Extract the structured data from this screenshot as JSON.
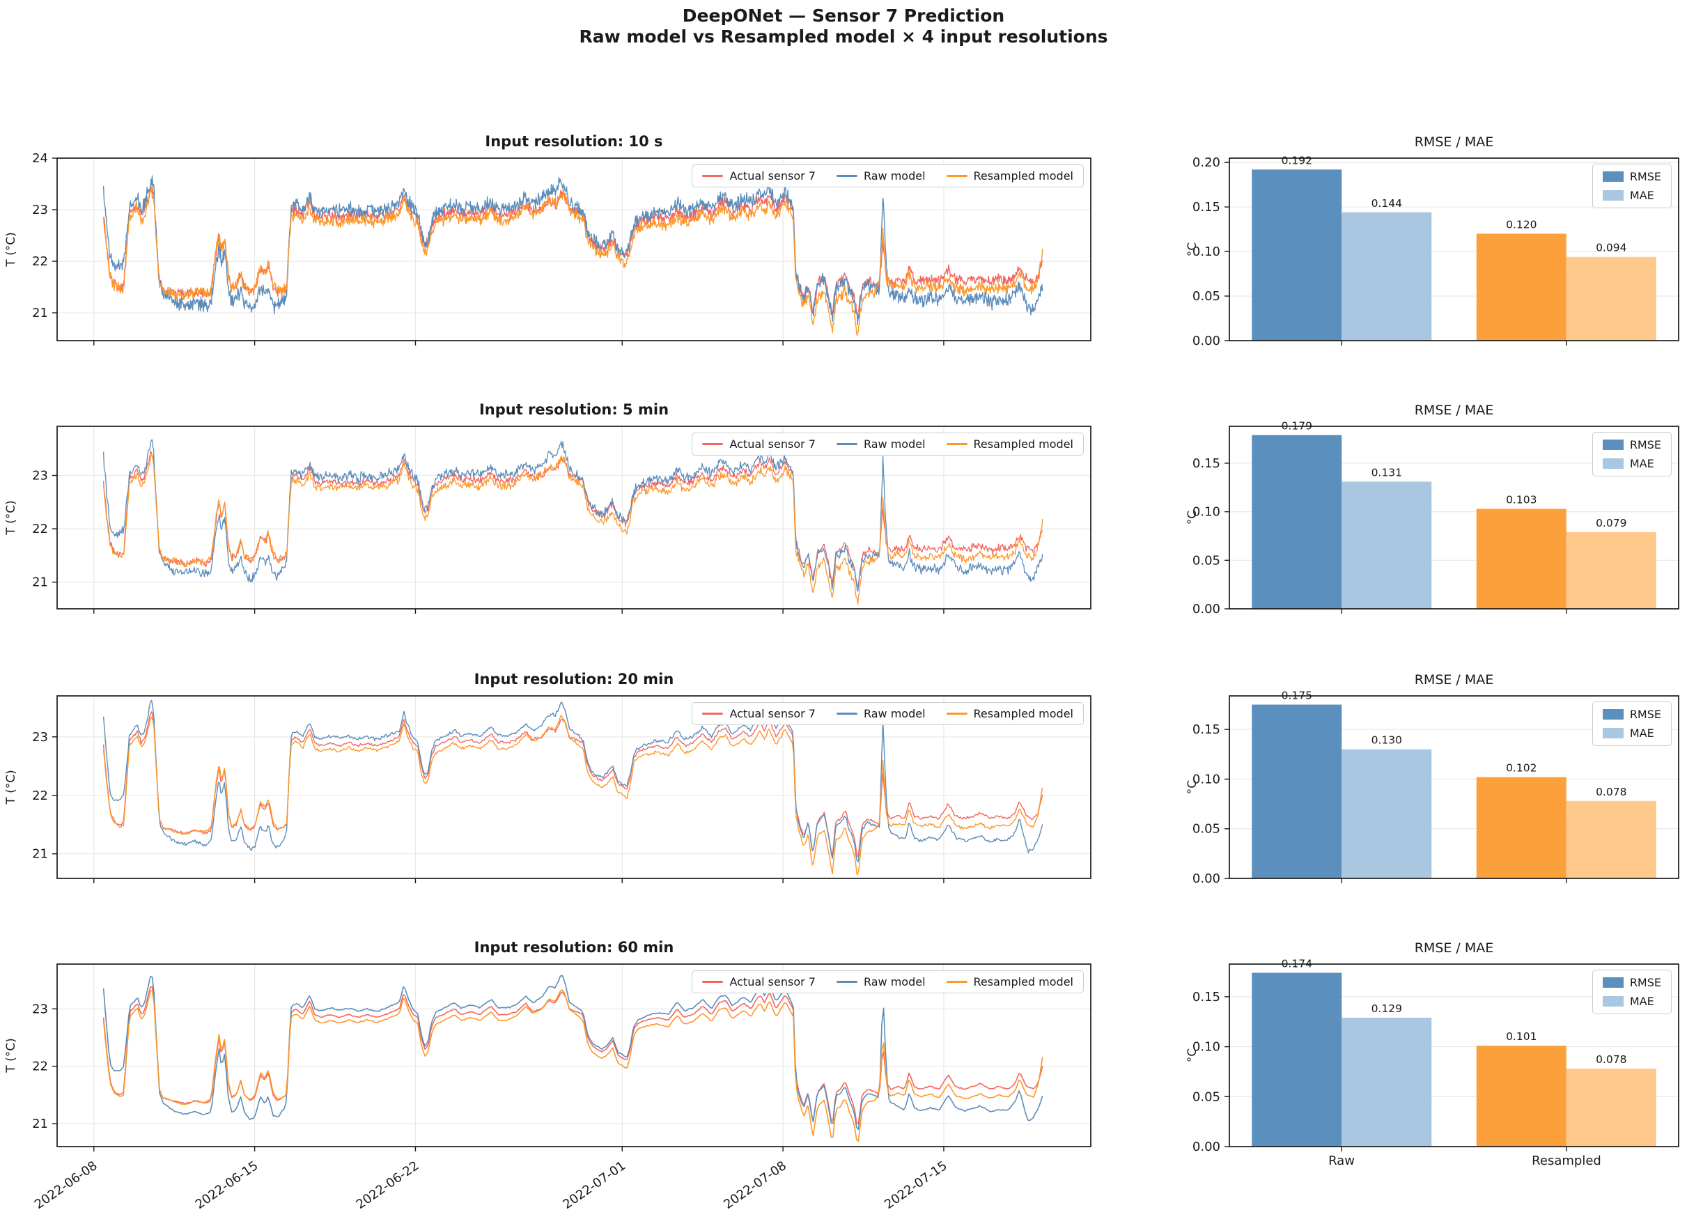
{
  "figure": {
    "title_line1": "DeepONet — Sensor 7 Prediction",
    "title_line2": "Raw model vs Resampled model × 4 input resolutions"
  },
  "colors": {
    "actual": "#f4655f",
    "raw": "#5b8cba",
    "resampled": "#fd9727",
    "rmse_bar": "#5a8fbe",
    "mae_bar": "#aac7e2",
    "rmse_bar_resampled": "#fca03c",
    "mae_bar_resampled": "#ffc98c",
    "grid": "#e7e7e7",
    "spine": "#1a1a1a"
  },
  "chart_data": {
    "timeseries": {
      "type": "line",
      "ylabel": "T (°C)",
      "series_legend": [
        "Actual sensor 7",
        "Raw model",
        "Resampled model"
      ],
      "x_unit": "days since 2022-06-08",
      "xlim_days": [
        -1.6,
        43.4
      ],
      "xticks_days": [
        0,
        7,
        14,
        23,
        30,
        37
      ],
      "xtick_labels": [
        "2022-06-08",
        "2022-06-15",
        "2022-06-22",
        "2022-07-01",
        "2022-07-08",
        "2022-07-15"
      ],
      "rows": [
        {
          "title": "Input resolution: 10 s",
          "yticks": [
            21,
            22,
            23,
            24
          ],
          "ylim": [
            20.46,
            24.0
          ],
          "noise": 0.13,
          "samples": 1600,
          "linewidth": 1.4
        },
        {
          "title": "Input resolution: 5 min",
          "yticks": [
            21,
            22,
            23
          ],
          "ylim": [
            20.5,
            23.92
          ],
          "noise": 0.085,
          "samples": 1200,
          "linewidth": 1.3
        },
        {
          "title": "Input resolution: 20 min",
          "yticks": [
            21,
            22,
            23
          ],
          "ylim": [
            20.58,
            23.7
          ],
          "noise": 0.03,
          "samples": 800,
          "linewidth": 1.4
        },
        {
          "title": "Input resolution: 60 min",
          "yticks": [
            21,
            22,
            23
          ],
          "ylim": [
            20.6,
            23.78
          ],
          "noise": 0.012,
          "samples": 520,
          "linewidth": 1.6
        }
      ],
      "actual_keypoints": [
        [
          0.42,
          22.85
        ],
        [
          0.55,
          22.3
        ],
        [
          0.7,
          21.75
        ],
        [
          0.85,
          21.58
        ],
        [
          1.0,
          21.52
        ],
        [
          1.15,
          21.5
        ],
        [
          1.3,
          21.55
        ],
        [
          1.45,
          22.4
        ],
        [
          1.55,
          22.95
        ],
        [
          1.7,
          23.0
        ],
        [
          1.9,
          23.1
        ],
        [
          2.05,
          22.9
        ],
        [
          2.2,
          22.95
        ],
        [
          2.35,
          23.2
        ],
        [
          2.5,
          23.45
        ],
        [
          2.6,
          23.3
        ],
        [
          2.7,
          22.6
        ],
        [
          2.85,
          21.6
        ],
        [
          3.0,
          21.45
        ],
        [
          3.3,
          21.42
        ],
        [
          3.6,
          21.38
        ],
        [
          4.0,
          21.35
        ],
        [
          4.4,
          21.4
        ],
        [
          4.8,
          21.35
        ],
        [
          5.1,
          21.4
        ],
        [
          5.3,
          22.1
        ],
        [
          5.45,
          22.5
        ],
        [
          5.55,
          22.2
        ],
        [
          5.7,
          22.45
        ],
        [
          5.85,
          21.7
        ],
        [
          6.0,
          21.45
        ],
        [
          6.2,
          21.5
        ],
        [
          6.4,
          21.75
        ],
        [
          6.55,
          21.5
        ],
        [
          6.8,
          21.4
        ],
        [
          7.0,
          21.45
        ],
        [
          7.25,
          21.85
        ],
        [
          7.45,
          21.75
        ],
        [
          7.6,
          21.9
        ],
        [
          7.8,
          21.5
        ],
        [
          8.0,
          21.4
        ],
        [
          8.2,
          21.45
        ],
        [
          8.4,
          21.5
        ],
        [
          8.5,
          22.4
        ],
        [
          8.6,
          22.95
        ],
        [
          8.8,
          23.0
        ],
        [
          9.1,
          22.9
        ],
        [
          9.4,
          23.15
        ],
        [
          9.6,
          22.9
        ],
        [
          9.9,
          22.85
        ],
        [
          10.3,
          22.9
        ],
        [
          10.7,
          22.85
        ],
        [
          11.1,
          22.9
        ],
        [
          11.5,
          22.85
        ],
        [
          11.9,
          22.9
        ],
        [
          12.3,
          22.85
        ],
        [
          12.7,
          22.9
        ],
        [
          13.0,
          22.95
        ],
        [
          13.3,
          23.0
        ],
        [
          13.5,
          23.3
        ],
        [
          13.65,
          23.1
        ],
        [
          13.9,
          22.9
        ],
        [
          14.1,
          22.85
        ],
        [
          14.25,
          22.5
        ],
        [
          14.4,
          22.3
        ],
        [
          14.55,
          22.35
        ],
        [
          14.7,
          22.7
        ],
        [
          14.9,
          22.85
        ],
        [
          15.2,
          22.9
        ],
        [
          15.7,
          23.0
        ],
        [
          16.0,
          22.9
        ],
        [
          16.4,
          22.95
        ],
        [
          16.8,
          22.9
        ],
        [
          17.3,
          23.05
        ],
        [
          17.6,
          22.9
        ],
        [
          18.0,
          22.9
        ],
        [
          18.4,
          22.95
        ],
        [
          18.8,
          23.1
        ],
        [
          19.1,
          22.95
        ],
        [
          19.5,
          23.0
        ],
        [
          19.8,
          23.15
        ],
        [
          20.1,
          23.1
        ],
        [
          20.35,
          23.3
        ],
        [
          20.5,
          23.25
        ],
        [
          20.7,
          23.0
        ],
        [
          21.0,
          22.95
        ],
        [
          21.3,
          22.9
        ],
        [
          21.5,
          22.5
        ],
        [
          21.7,
          22.35
        ],
        [
          21.9,
          22.3
        ],
        [
          22.1,
          22.25
        ],
        [
          22.3,
          22.3
        ],
        [
          22.6,
          22.45
        ],
        [
          22.8,
          22.2
        ],
        [
          23.0,
          22.15
        ],
        [
          23.2,
          22.1
        ],
        [
          23.35,
          22.3
        ],
        [
          23.5,
          22.65
        ],
        [
          23.7,
          22.75
        ],
        [
          24.0,
          22.8
        ],
        [
          24.5,
          22.85
        ],
        [
          25.0,
          22.8
        ],
        [
          25.4,
          23.0
        ],
        [
          25.7,
          22.85
        ],
        [
          26.1,
          22.9
        ],
        [
          26.5,
          23.05
        ],
        [
          26.9,
          22.9
        ],
        [
          27.2,
          23.1
        ],
        [
          27.5,
          23.15
        ],
        [
          27.8,
          22.95
        ],
        [
          28.3,
          23.1
        ],
        [
          28.6,
          23.0
        ],
        [
          29.0,
          23.25
        ],
        [
          29.2,
          23.1
        ],
        [
          29.4,
          23.3
        ],
        [
          29.7,
          23.0
        ],
        [
          30.1,
          23.25
        ],
        [
          30.3,
          23.1
        ],
        [
          30.45,
          23.0
        ],
        [
          30.55,
          21.8
        ],
        [
          30.7,
          21.55
        ],
        [
          30.9,
          21.3
        ],
        [
          31.1,
          21.55
        ],
        [
          31.3,
          21.0
        ],
        [
          31.5,
          21.55
        ],
        [
          31.8,
          21.7
        ],
        [
          32.0,
          21.3
        ],
        [
          32.15,
          20.95
        ],
        [
          32.3,
          21.55
        ],
        [
          32.5,
          21.6
        ],
        [
          32.7,
          21.75
        ],
        [
          32.9,
          21.5
        ],
        [
          33.1,
          21.3
        ],
        [
          33.25,
          20.9
        ],
        [
          33.45,
          21.5
        ],
        [
          33.7,
          21.6
        ],
        [
          34.0,
          21.55
        ],
        [
          34.2,
          21.5
        ],
        [
          34.35,
          22.4
        ],
        [
          34.5,
          21.7
        ],
        [
          34.7,
          21.6
        ],
        [
          35.0,
          21.65
        ],
        [
          35.3,
          21.6
        ],
        [
          35.5,
          21.9
        ],
        [
          35.7,
          21.65
        ],
        [
          36.0,
          21.6
        ],
        [
          36.4,
          21.65
        ],
        [
          36.8,
          21.6
        ],
        [
          37.2,
          21.85
        ],
        [
          37.5,
          21.65
        ],
        [
          37.9,
          21.6
        ],
        [
          38.3,
          21.65
        ],
        [
          38.6,
          21.7
        ],
        [
          39.0,
          21.6
        ],
        [
          39.4,
          21.65
        ],
        [
          39.8,
          21.6
        ],
        [
          40.1,
          21.7
        ],
        [
          40.3,
          21.9
        ],
        [
          40.6,
          21.65
        ],
        [
          40.9,
          21.6
        ],
        [
          41.1,
          21.7
        ],
        [
          41.3,
          22.0
        ]
      ],
      "raw_offset_keypoints": [
        [
          0.42,
          0.5
        ],
        [
          0.7,
          0.3
        ],
        [
          1.0,
          0.4
        ],
        [
          1.3,
          0.45
        ],
        [
          1.5,
          0.1
        ],
        [
          1.9,
          0.1
        ],
        [
          2.35,
          0.15
        ],
        [
          2.5,
          0.2
        ],
        [
          2.85,
          -0.05
        ],
        [
          3.5,
          -0.18
        ],
        [
          5.0,
          -0.2
        ],
        [
          5.45,
          -0.2
        ],
        [
          6.4,
          -0.28
        ],
        [
          7.3,
          -0.38
        ],
        [
          7.6,
          -0.42
        ],
        [
          8.3,
          -0.2
        ],
        [
          8.6,
          0.1
        ],
        [
          9.4,
          0.1
        ],
        [
          10.5,
          0.12
        ],
        [
          12.0,
          0.1
        ],
        [
          13.5,
          0.12
        ],
        [
          14.4,
          0.05
        ],
        [
          15.0,
          0.1
        ],
        [
          17.0,
          0.12
        ],
        [
          18.8,
          0.12
        ],
        [
          20.35,
          0.3
        ],
        [
          20.7,
          0.12
        ],
        [
          21.3,
          0.05
        ],
        [
          22.3,
          0.05
        ],
        [
          23.2,
          0.05
        ],
        [
          23.6,
          0.05
        ],
        [
          25.4,
          0.12
        ],
        [
          27.5,
          0.1
        ],
        [
          29.0,
          0.12
        ],
        [
          29.4,
          0.15
        ],
        [
          30.1,
          0.1
        ],
        [
          30.45,
          0.05
        ],
        [
          30.7,
          -0.05
        ],
        [
          31.3,
          0.0
        ],
        [
          32.0,
          -0.05
        ],
        [
          33.0,
          -0.1
        ],
        [
          34.2,
          -0.05
        ],
        [
          34.35,
          0.9
        ],
        [
          34.6,
          -0.2
        ],
        [
          35.0,
          -0.35
        ],
        [
          36.0,
          -0.38
        ],
        [
          37.2,
          -0.35
        ],
        [
          38.0,
          -0.38
        ],
        [
          39.5,
          -0.4
        ],
        [
          40.3,
          -0.3
        ],
        [
          40.7,
          -0.6
        ],
        [
          41.0,
          -0.45
        ],
        [
          41.3,
          -0.5
        ]
      ],
      "resampled_offset_keypoints": [
        [
          0.42,
          -0.05
        ],
        [
          1.0,
          -0.02
        ],
        [
          1.5,
          -0.08
        ],
        [
          2.5,
          -0.08
        ],
        [
          2.85,
          0.0
        ],
        [
          4.0,
          -0.02
        ],
        [
          5.45,
          0.05
        ],
        [
          6.4,
          0.0
        ],
        [
          7.6,
          0.05
        ],
        [
          8.4,
          0.0
        ],
        [
          8.6,
          -0.08
        ],
        [
          10.0,
          -0.1
        ],
        [
          13.5,
          -0.08
        ],
        [
          14.4,
          -0.12
        ],
        [
          16.0,
          -0.1
        ],
        [
          18.0,
          -0.1
        ],
        [
          20.35,
          0.05
        ],
        [
          21.3,
          -0.1
        ],
        [
          22.3,
          -0.12
        ],
        [
          23.2,
          -0.15
        ],
        [
          23.6,
          -0.1
        ],
        [
          26.0,
          -0.12
        ],
        [
          28.0,
          -0.12
        ],
        [
          29.4,
          -0.15
        ],
        [
          30.3,
          -0.12
        ],
        [
          30.7,
          -0.15
        ],
        [
          31.3,
          -0.25
        ],
        [
          32.15,
          -0.3
        ],
        [
          33.25,
          -0.3
        ],
        [
          34.0,
          -0.15
        ],
        [
          34.35,
          0.2
        ],
        [
          34.6,
          -0.12
        ],
        [
          35.5,
          -0.12
        ],
        [
          37.0,
          -0.15
        ],
        [
          38.5,
          -0.18
        ],
        [
          40.3,
          -0.12
        ],
        [
          40.9,
          -0.15
        ],
        [
          41.15,
          0.0
        ],
        [
          41.3,
          0.15
        ]
      ]
    },
    "bars": {
      "type": "bar",
      "title": "RMSE / MAE",
      "ylabel": "°C",
      "categories": [
        "Raw",
        "Resampled"
      ],
      "legend": [
        "RMSE",
        "MAE"
      ],
      "rows": [
        {
          "rmse": [
            0.192,
            0.12
          ],
          "mae": [
            0.144,
            0.094
          ],
          "yticks": [
            0.0,
            0.05,
            0.1,
            0.15,
            0.2
          ],
          "ylim": [
            0,
            0.2048
          ]
        },
        {
          "rmse": [
            0.179,
            0.103
          ],
          "mae": [
            0.131,
            0.079
          ],
          "yticks": [
            0.0,
            0.05,
            0.1,
            0.15
          ],
          "ylim": [
            0,
            0.188
          ]
        },
        {
          "rmse": [
            0.175,
            0.102
          ],
          "mae": [
            0.13,
            0.078
          ],
          "yticks": [
            0.0,
            0.05,
            0.1,
            0.15
          ],
          "ylim": [
            0,
            0.1838
          ]
        },
        {
          "rmse": [
            0.174,
            0.101
          ],
          "mae": [
            0.129,
            0.078
          ],
          "yticks": [
            0.0,
            0.05,
            0.1,
            0.15
          ],
          "ylim": [
            0,
            0.1827
          ]
        }
      ]
    }
  }
}
